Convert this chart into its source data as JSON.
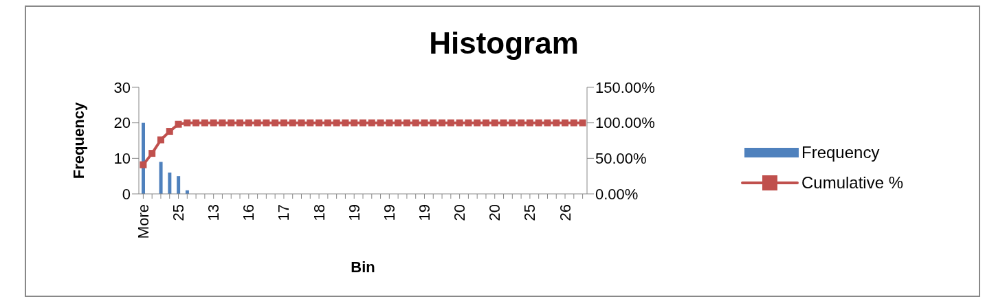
{
  "chart_data": {
    "type": "bar",
    "title": "Histogram",
    "xlabel": "Bin",
    "ylabel": "Frequency",
    "categories": [
      "More",
      null,
      null,
      null,
      "25",
      null,
      null,
      null,
      "13",
      null,
      null,
      null,
      "16",
      null,
      null,
      null,
      "17",
      null,
      null,
      null,
      "18",
      null,
      null,
      null,
      "19",
      null,
      null,
      null,
      "19",
      null,
      null,
      null,
      "19",
      null,
      null,
      null,
      "20",
      null,
      null,
      null,
      "20",
      null,
      null,
      null,
      "25",
      null,
      null,
      null,
      "26",
      null,
      null
    ],
    "series": [
      {
        "name": "Frequency",
        "color": "#4f81bd",
        "values": [
          20,
          null,
          9,
          6,
          5,
          1,
          0,
          0,
          0,
          0,
          0,
          0,
          0,
          0,
          0,
          0,
          0,
          0,
          0,
          0,
          0,
          0,
          0,
          0,
          0,
          0,
          0,
          0,
          0,
          0,
          0,
          0,
          0,
          0,
          0,
          0,
          0,
          0,
          0,
          0,
          0,
          0,
          0,
          0,
          0,
          0,
          0,
          0,
          0,
          0,
          0
        ]
      },
      {
        "name": "Cumulative %",
        "type": "line",
        "axis": "y2",
        "color": "#c0504d",
        "marker": "square",
        "values": [
          41,
          57,
          76,
          88,
          98,
          100,
          100,
          100,
          100,
          100,
          100,
          100,
          100,
          100,
          100,
          100,
          100,
          100,
          100,
          100,
          100,
          100,
          100,
          100,
          100,
          100,
          100,
          100,
          100,
          100,
          100,
          100,
          100,
          100,
          100,
          100,
          100,
          100,
          100,
          100,
          100,
          100,
          100,
          100,
          100,
          100,
          100,
          100,
          100,
          100,
          100
        ]
      }
    ],
    "ylim": [
      0,
      30
    ],
    "yticks": [
      0,
      10,
      20,
      30
    ],
    "y2lim": [
      0,
      150
    ],
    "y2ticks": [
      {
        "value": 0,
        "label": "0.00%"
      },
      {
        "value": 50,
        "label": "50.00%"
      },
      {
        "value": 100,
        "label": "100.00%"
      },
      {
        "value": 150,
        "label": "150.00%"
      }
    ],
    "grid": false,
    "legend": "right"
  }
}
